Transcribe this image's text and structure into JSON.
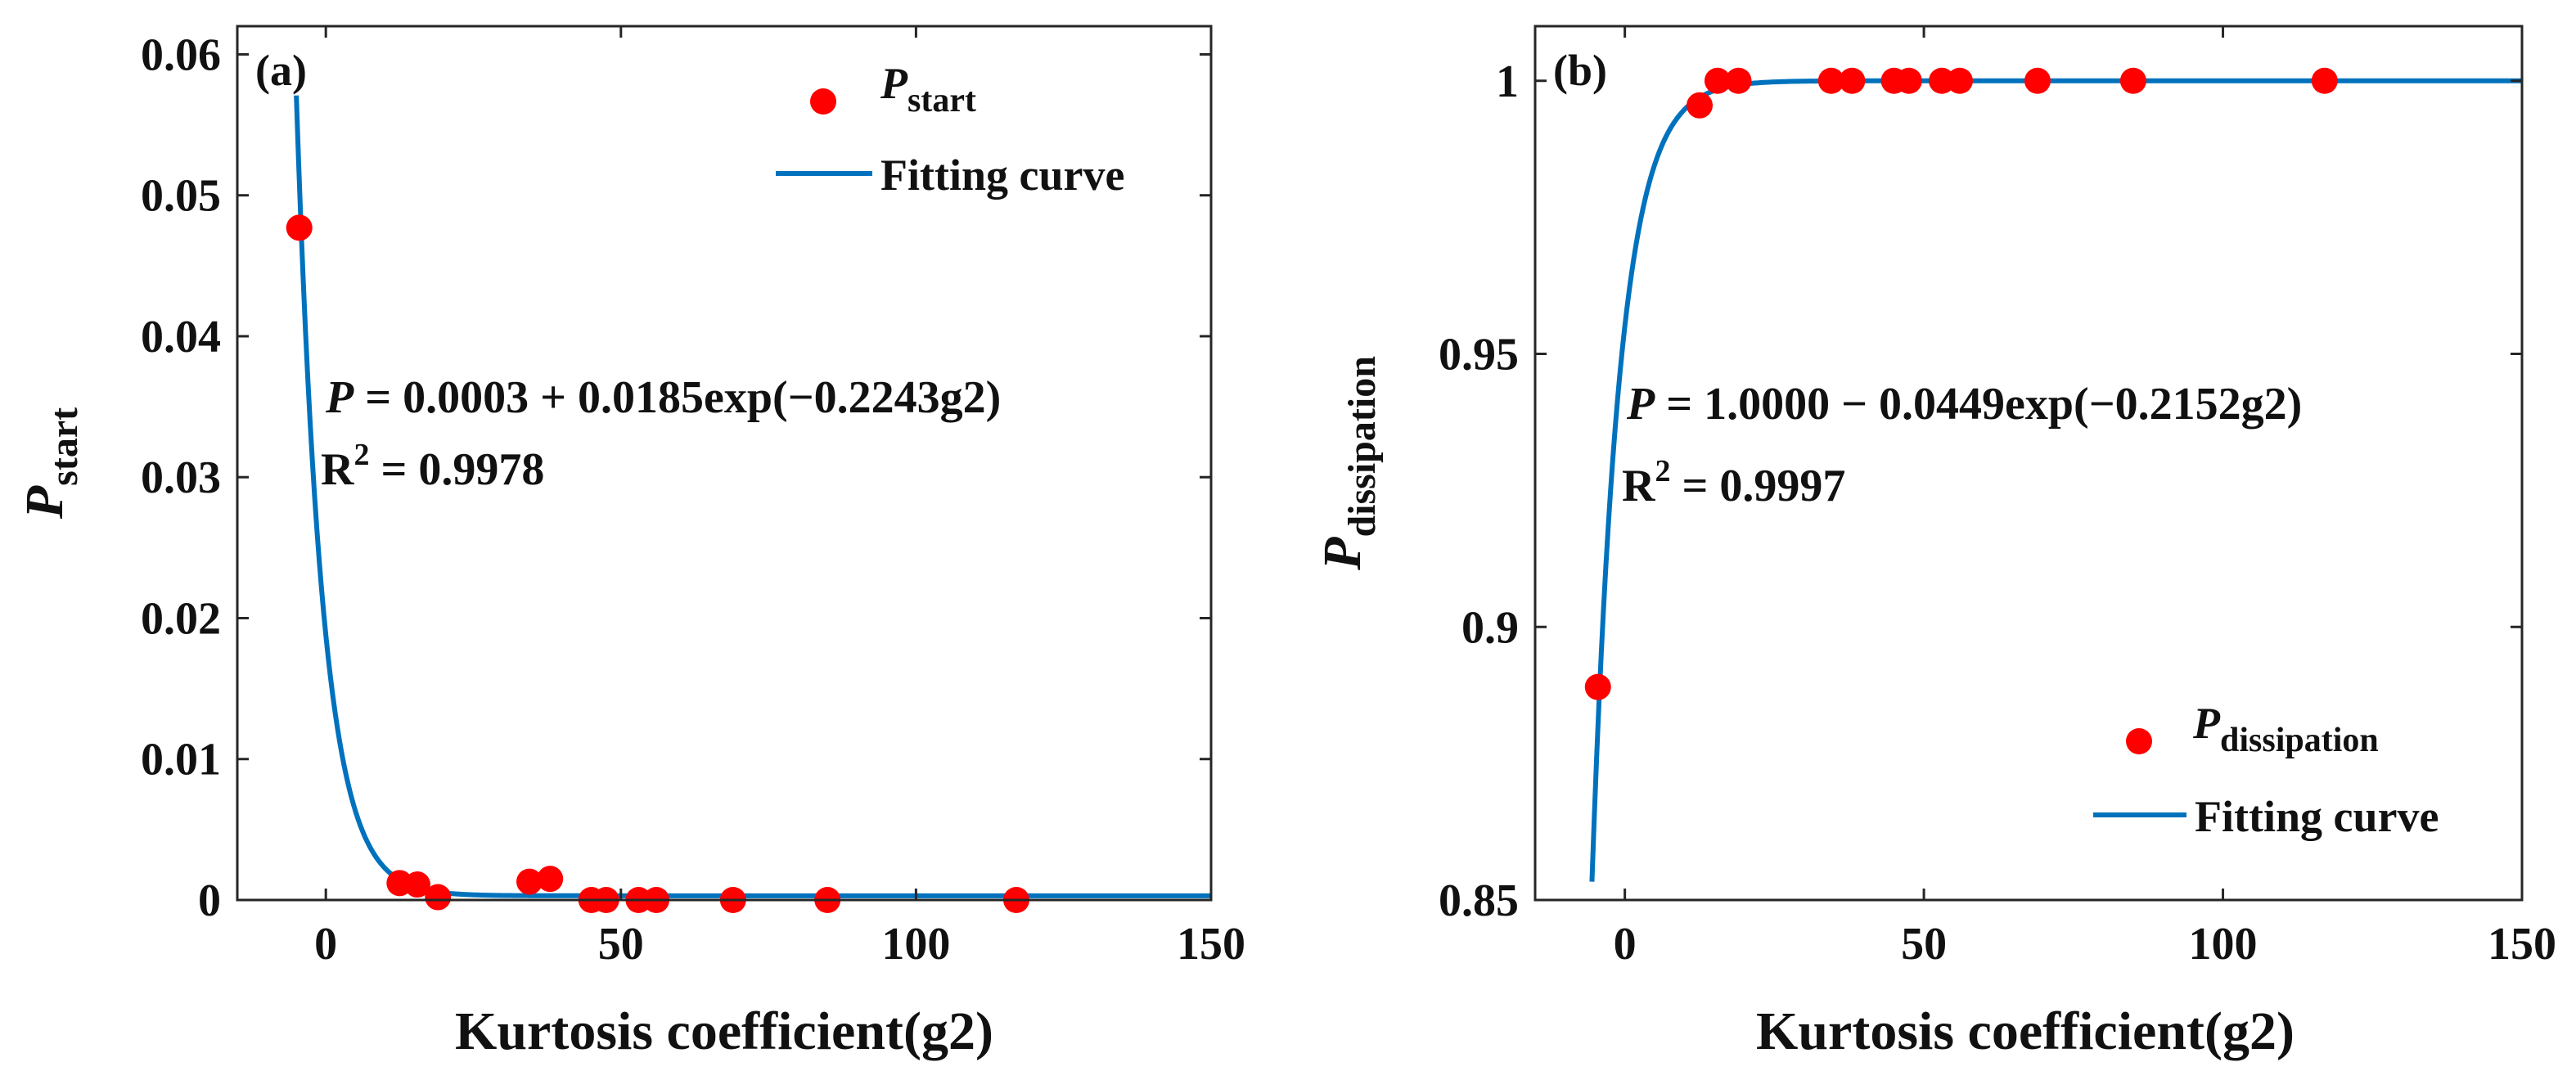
{
  "chart_data": [
    {
      "type": "scatter",
      "panel_tag": "(a)",
      "xlabel": "Kurtosis coefficient(g2)",
      "ylabel_main": "P",
      "ylabel_sub": "start",
      "xlim": [
        -15,
        150
      ],
      "ylim": [
        0,
        0.062
      ],
      "xticks": [
        0,
        50,
        100,
        150
      ],
      "xtick_labels": [
        "0",
        "50",
        "100",
        "150"
      ],
      "yticks": [
        0,
        0.01,
        0.02,
        0.03,
        0.04,
        0.05,
        0.06
      ],
      "ytick_labels": [
        "0",
        "0.01",
        "0.02",
        "0.03",
        "0.04",
        "0.05",
        "0.06"
      ],
      "legend_position": "top-right",
      "legend": {
        "points_main": "P",
        "points_sub": "start",
        "curve": "Fitting curve"
      },
      "equation": {
        "lhs": "P",
        "rhs": " = 0.0003 + 0.0185exp(−0.2243g2)",
        "r2_base": "R",
        "r2_exp": "2",
        "r2_rest": " = 0.9978"
      },
      "points": {
        "x": [
          -4.5,
          12.5,
          15.5,
          19,
          34.5,
          38,
          45,
          47.5,
          53,
          56,
          69,
          85,
          117
        ],
        "y": [
          0.0477,
          0.0012,
          0.0011,
          0.0002,
          0.0013,
          0.0015,
          0.0,
          0.0,
          0.0,
          0.0,
          0.0,
          0.0,
          0.0
        ]
      },
      "fit": {
        "a": 0.0003,
        "b": 0.0185,
        "c": -0.2243,
        "x_start": -5.0,
        "x_end": 150
      },
      "colors": {
        "points": "#FF0000",
        "fit": "#0072BD"
      }
    },
    {
      "type": "scatter",
      "panel_tag": "(b)",
      "xlabel": "Kurtosis coefficient(g2)",
      "ylabel_main": "P",
      "ylabel_sub": "dissipation",
      "xlim": [
        -15,
        150
      ],
      "ylim": [
        0.85,
        1.01
      ],
      "xticks": [
        0,
        50,
        100,
        150
      ],
      "xtick_labels": [
        "0",
        "50",
        "100",
        "150"
      ],
      "yticks": [
        0.85,
        0.9,
        0.95,
        1.0
      ],
      "ytick_labels": [
        "0.85",
        "0.9",
        "0.95",
        "1"
      ],
      "legend_position": "bottom-right",
      "legend": {
        "points_main": "P",
        "points_sub": "dissipation",
        "curve": "Fitting curve"
      },
      "equation": {
        "lhs": "P",
        "rhs": " = 1.0000 − 0.0449exp(−0.2152g2)",
        "r2_base": "R",
        "r2_exp": "2",
        "r2_rest": " = 0.9997"
      },
      "points": {
        "x": [
          -4.5,
          12.5,
          15.5,
          19,
          34.5,
          38,
          45,
          47.5,
          53,
          56,
          69,
          85,
          117
        ],
        "y": [
          0.889,
          0.9955,
          1.0,
          1.0,
          1.0,
          1.0,
          1.0,
          1.0,
          1.0,
          1.0,
          1.0,
          1.0,
          1.0
        ]
      },
      "fit": {
        "a": 1.0,
        "b": -0.0449,
        "c": -0.2152,
        "x_start": -5.5,
        "x_end": 150
      },
      "colors": {
        "points": "#FF0000",
        "fit": "#0072BD"
      }
    }
  ]
}
